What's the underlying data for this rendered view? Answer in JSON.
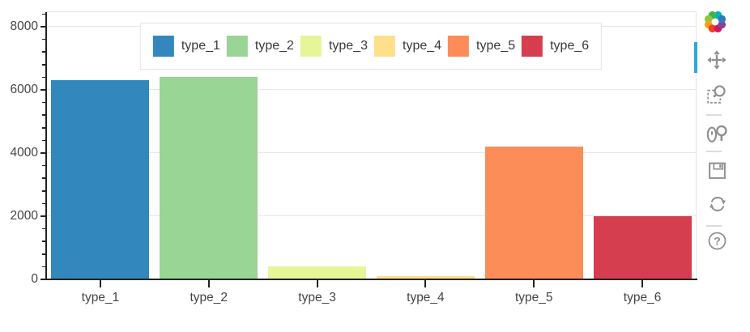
{
  "chart_data": {
    "type": "bar",
    "title": "",
    "xlabel": "",
    "ylabel": "",
    "categories": [
      "type_1",
      "type_2",
      "type_3",
      "type_4",
      "type_5",
      "type_6"
    ],
    "values": [
      6300,
      6400,
      400,
      100,
      4200,
      2000
    ],
    "colors": [
      "#3288bd",
      "#99d594",
      "#e6f598",
      "#fee08b",
      "#fc8d59",
      "#d53e4f"
    ],
    "ylim": [
      0,
      8460
    ],
    "yticks": [
      0,
      2000,
      4000,
      6000,
      8000
    ],
    "ytick_labels": [
      "0",
      "2000",
      "4000",
      "6000",
      "8000"
    ],
    "minor_tick_step": 400,
    "grid": "horizontal-only",
    "legend": {
      "position": "top-center",
      "orientation": "horizontal",
      "labels": [
        "type_1",
        "type_2",
        "type_3",
        "type_4",
        "type_5",
        "type_6"
      ]
    }
  },
  "toolbar": {
    "active_tool": "pan",
    "active_indicator_color": "#26aae1",
    "icon_color": "#8f8f8f",
    "tools": [
      {
        "name": "pan",
        "icon": "move-icon",
        "active": true
      },
      {
        "name": "box-zoom",
        "icon": "box-zoom-icon",
        "active": false
      },
      {
        "name": "wheel-zoom",
        "icon": "wheel-zoom-icon",
        "active": false
      },
      {
        "name": "save",
        "icon": "save-icon",
        "active": false
      },
      {
        "name": "reset",
        "icon": "reset-icon",
        "active": false
      },
      {
        "name": "help",
        "icon": "help-icon",
        "active": false
      }
    ]
  },
  "colors": {
    "grid": "#e7e7e7",
    "axis": "#222222",
    "tick_label": "#444444",
    "legend_border": "#e5e5e5",
    "plot_outline": "#e5e5e5"
  }
}
